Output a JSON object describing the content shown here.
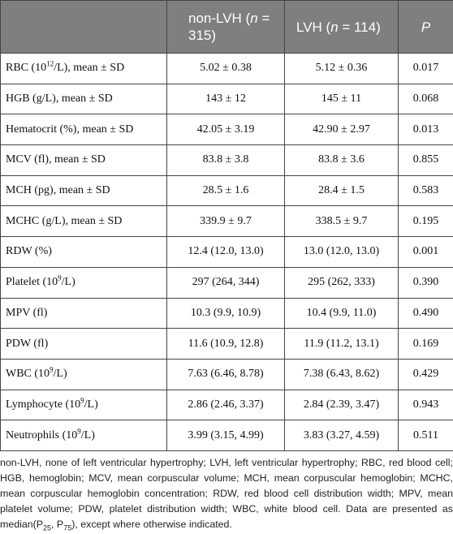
{
  "table": {
    "header": [
      [
        {
          "t": "non-LVH ("
        },
        {
          "t": "n",
          "s": "i"
        },
        {
          "t": " = 315)"
        }
      ],
      [
        {
          "t": "LVH ("
        },
        {
          "t": "n",
          "s": "i"
        },
        {
          "t": " = 114)"
        }
      ],
      [
        {
          "t": "P",
          "s": "i"
        }
      ]
    ],
    "rows": [
      [
        [
          {
            "t": "RBC (10"
          },
          {
            "t": "12",
            "s": "sup"
          },
          {
            "t": "/L), mean ± SD"
          }
        ],
        "5.02 ± 0.38",
        "5.12 ± 0.36",
        "0.017"
      ],
      [
        "HGB (g/L), mean ± SD",
        "143 ± 12",
        "145 ± 11",
        "0.068"
      ],
      [
        "Hematocrit (%), mean ± SD",
        "42.05 ± 3.19",
        "42.90 ± 2.97",
        "0.013"
      ],
      [
        "MCV (fl), mean ± SD",
        "83.8 ± 3.8",
        "83.8 ± 3.6",
        "0.855"
      ],
      [
        "MCH (pg), mean ± SD",
        "28.5 ± 1.6",
        "28.4 ± 1.5",
        "0.583"
      ],
      [
        "MCHC (g/L), mean ± SD",
        "339.9 ± 9.7",
        "338.5 ± 9.7",
        "0.195"
      ],
      [
        "RDW (%)",
        "12.4 (12.0, 13.0)",
        "13.0 (12.0, 13.0)",
        "0.001"
      ],
      [
        [
          {
            "t": "Platelet (10"
          },
          {
            "t": "9",
            "s": "sup"
          },
          {
            "t": "/L)"
          }
        ],
        "297 (264, 344)",
        "295 (262, 333)",
        "0.390"
      ],
      [
        "MPV (fl)",
        "10.3 (9.9, 10.9)",
        "10.4 (9.9, 11.0)",
        "0.490"
      ],
      [
        "PDW (fl)",
        "11.6 (10.9, 12.8)",
        "11.9 (11.2, 13.1)",
        "0.169"
      ],
      [
        [
          {
            "t": "WBC (10"
          },
          {
            "t": "9",
            "s": "sup"
          },
          {
            "t": "/L)"
          }
        ],
        "7.63 (6.46, 8.78)",
        "7.38 (6.43, 8.62)",
        "0.429"
      ],
      [
        [
          {
            "t": "Lymphocyte (10"
          },
          {
            "t": "9",
            "s": "sup"
          },
          {
            "t": "/L)"
          }
        ],
        "2.86 (2.46, 3.37)",
        "2.84 (2.39, 3.47)",
        "0.943"
      ],
      [
        [
          {
            "t": "Neutrophils (10"
          },
          {
            "t": "9",
            "s": "sup"
          },
          {
            "t": "/L)"
          }
        ],
        "3.99 (3.15, 4.99)",
        "3.83 (3.27, 4.59)",
        "0.511"
      ]
    ],
    "footnote": [
      {
        "t": "non-LVH, none of left ventricular hypertrophy; LVH, left ventricular hypertrophy; RBC, red blood cell; HGB, hemoglobin; MCV, mean corpuscular volume; MCH, mean corpuscular hemoglobin; MCHC, mean corpuscular hemoglobin concentration; RDW, red blood cell distribution width; MPV, mean platelet volume; PDW, platelet distribution width; WBC, white blood cell. Data are presented as median(P"
      },
      {
        "t": "25",
        "s": "sub"
      },
      {
        "t": ", P"
      },
      {
        "t": "75",
        "s": "sub"
      },
      {
        "t": "), except where otherwise indicated."
      }
    ]
  }
}
